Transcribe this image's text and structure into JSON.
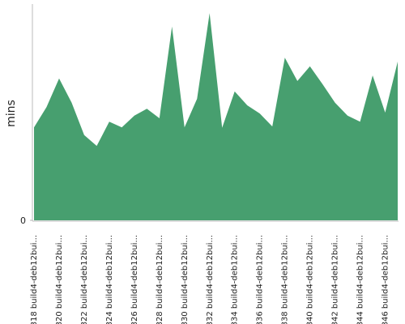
{
  "chart_data": {
    "type": "area",
    "y_label": "mins",
    "categories": [
      "#818 build4-deb12bui...",
      null,
      "#820 build4-deb12bui...",
      null,
      "#822 build4-deb12bui...",
      null,
      "#824 build4-deb12bui...",
      null,
      "#826 build4-deb12bui...",
      null,
      "#828 build4-deb12bui...",
      null,
      "#830 build4-deb12bui...",
      null,
      "#832 build4-deb12bui...",
      null,
      "#834 build4-deb12bui...",
      null,
      "#836 build4-deb12bui...",
      null,
      "#838 build4-deb12bui...",
      null,
      "#840 build4-deb12bui...",
      null,
      "#842 build4-deb12bui...",
      null,
      "#844 build4-deb12bui...",
      null,
      "#846 build4-deb12bui...",
      null
    ],
    "values": [
      21.5,
      26.2,
      32.8,
      27.2,
      19.7,
      17.2,
      22.8,
      21.5,
      24.2,
      25.8,
      23.6,
      44.8,
      21.5,
      28.1,
      47.9,
      21.4,
      29.8,
      26.6,
      24.7,
      21.7,
      37.6,
      32.2,
      35.6,
      31.5,
      27.2,
      24.2,
      22.8,
      33.5,
      24.9,
      36.7
    ],
    "color": "#479f6f",
    "ylim": [
      0,
      50
    ],
    "yticks": [
      0
    ]
  }
}
